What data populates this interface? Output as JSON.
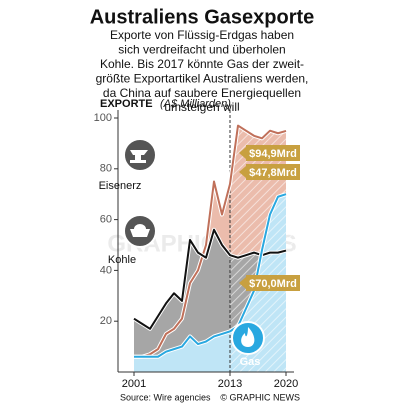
{
  "chart_data": {
    "type": "line",
    "title": "Australiens Gasexporte",
    "subtitle": [
      "Exporte von Flüssig-Erdgas haben",
      "sich verdreifacht und überholen",
      "Kohle. Bis 2017 könnte Gas der zweit-",
      "größte Exportartikel Australiens werden,",
      "da China auf saubere Energiequellen",
      "umsteigen will"
    ],
    "y_label": "EXPORTE",
    "y_unit": "(A$ Milliarden)",
    "x": [
      2001,
      2002,
      2003,
      2004,
      2005,
      2006,
      2007,
      2008,
      2009,
      2010,
      2011,
      2012,
      2013,
      2014,
      2015,
      2016,
      2017,
      2018,
      2019,
      2020
    ],
    "series": [
      {
        "name": "Eisenerz",
        "color": "#c0705a",
        "area_color": "#ebbcac",
        "values": [
          6,
          6,
          7,
          9,
          15,
          17,
          21,
          35,
          40,
          50,
          75,
          62,
          74,
          97,
          95,
          93,
          92,
          95,
          94,
          94.9
        ],
        "value_labels": [
          null,
          null,
          null,
          null,
          null,
          null,
          null,
          null,
          null,
          null,
          null,
          null,
          null,
          null,
          null,
          null,
          null,
          null,
          null,
          "$94,9Mrd"
        ]
      },
      {
        "name": "Kohle",
        "color": "#111111",
        "area_color": "#a6a6a6",
        "values": [
          21,
          19,
          17,
          22,
          27,
          31,
          28,
          52,
          47,
          45,
          56,
          50,
          46,
          45,
          46,
          47,
          46,
          47,
          47,
          47.8
        ],
        "value_labels": [
          null,
          null,
          null,
          null,
          null,
          null,
          null,
          null,
          null,
          null,
          null,
          null,
          null,
          null,
          null,
          null,
          null,
          null,
          null,
          "$47,8Mrd"
        ]
      },
      {
        "name": "Gas",
        "color": "#29a8e0",
        "area_color": "#bfe5f6",
        "values": [
          6,
          6,
          6,
          6,
          8,
          9,
          10,
          14,
          11,
          12,
          14,
          15,
          16,
          18,
          25,
          32,
          48,
          62,
          69,
          70.0
        ],
        "value_labels": [
          null,
          null,
          null,
          null,
          null,
          null,
          null,
          null,
          null,
          null,
          null,
          null,
          null,
          null,
          null,
          null,
          null,
          null,
          null,
          "$70,0Mrd"
        ]
      }
    ],
    "xlim": [
      1999,
      2021
    ],
    "xticks": [
      2001,
      2013,
      2020
    ],
    "ylim": [
      0,
      100
    ],
    "yticks": [
      20,
      40,
      60,
      80,
      100
    ],
    "forecast_from": 2013,
    "watermark": "GRAPHIC NEWS",
    "source": "Source: Wire agencies",
    "credit": "© GRAPHIC NEWS"
  }
}
